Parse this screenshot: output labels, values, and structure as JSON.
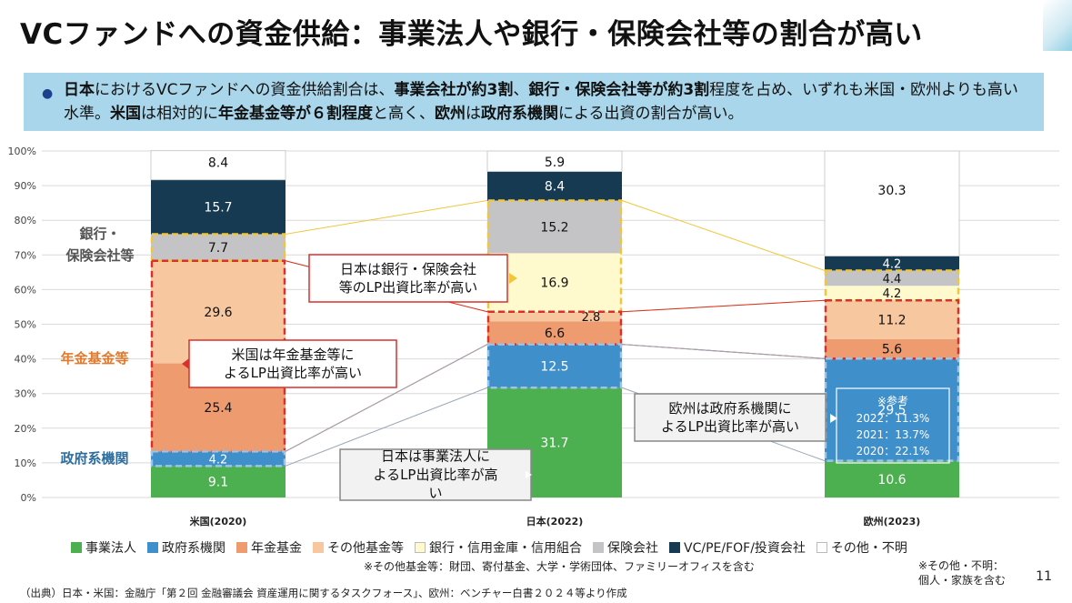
{
  "title": "VCファンドへの資金供給：事業法人や銀行・保険会社等の割合が高い",
  "summary": {
    "p1": "日本",
    "p2": "におけるVCファンドへの資金供給割合は、",
    "p3": "事業会社が約3割",
    "p4": "、",
    "p5": "銀行・保険会社等が約3割",
    "p6": "程度を占め、いずれも米国・欧州よりも高い水準。",
    "p7": "米国",
    "p8": "は相対的に",
    "p9": "年金基金等が６割程度",
    "p10": "と高く、",
    "p11": "欧州",
    "p12": "は",
    "p13": "政府系機関",
    "p14": "による出資の割合が高い。"
  },
  "colors": {
    "jigyou": "#4caf50",
    "seifu": "#3f8fca",
    "nenkin": "#ee9b6f",
    "sonota_kikin": "#f7c79f",
    "ginkou": "#fffacd",
    "hoken": "#c4c4c6",
    "vc": "#163a52",
    "sonota": "#ffffff",
    "bank_group": "#f0c63a",
    "pension_group": "#d9302b",
    "gov_group": "#9ec3e6"
  },
  "side_labels": {
    "bank": "銀行・\n保険会社等",
    "pension": "年金基金等",
    "gov": "政府系機関"
  },
  "callouts": {
    "us_pension": "米国は年金基金等に\nよるLP出資比率が高い",
    "jp_bank": "日本は銀行・保険会社\n等のLP出資比率が高い",
    "jp_corp": "日本は事業法人に\nよるLP出資比率が高\nい",
    "eu_gov": "欧州は政府系機関に\nよるLP出資比率が高い"
  },
  "reference_box": {
    "title": "※参考",
    "lines": [
      "2022：11.3%",
      "2021：13.7%",
      "2020：22.1%"
    ]
  },
  "legend": [
    {
      "label": "事業法人",
      "color": "#4caf50"
    },
    {
      "label": "政府系機関",
      "color": "#3f8fca"
    },
    {
      "label": "年金基金",
      "color": "#ee9b6f"
    },
    {
      "label": "その他基金等",
      "color": "#f7c79f"
    },
    {
      "label": "銀行・信用金庫・信用組合",
      "color": "#fffacd"
    },
    {
      "label": "保険会社",
      "color": "#c4c4c6"
    },
    {
      "label": "VC/PE/FOF/投資会社",
      "color": "#163a52"
    },
    {
      "label": "その他・不明",
      "color": "#ffffff"
    }
  ],
  "footnotes": {
    "sonota_kikin": "※その他基金等：財団、寄付基金、大学・学術団体、ファミリーオフィスを含む",
    "sonota": "※その他・不明：\n個人・家族を含む",
    "source": "（出典）日本・米国：金融庁「第２回 金融審議会 資産運用に関するタスクフォース」、欧州：ベンチャー白書２０２４等より作成",
    "page": "11"
  },
  "chart_data": {
    "type": "bar",
    "stacked": true,
    "categories": [
      "米国(2020)",
      "日本(2022)",
      "欧州(2023)"
    ],
    "y_ticks": [
      "0%",
      "10%",
      "20%",
      "30%",
      "40%",
      "50%",
      "60%",
      "70%",
      "80%",
      "90%",
      "100%"
    ],
    "ylim": [
      0,
      100
    ],
    "grid": true,
    "legend_position": "bottom",
    "series": [
      {
        "name": "事業法人",
        "values": [
          9.1,
          31.7,
          10.6
        ]
      },
      {
        "name": "政府系機関",
        "values": [
          4.2,
          12.5,
          29.5
        ]
      },
      {
        "name": "年金基金",
        "values": [
          25.4,
          6.6,
          5.6
        ]
      },
      {
        "name": "その他基金等",
        "values": [
          29.6,
          2.8,
          11.2
        ]
      },
      {
        "name": "銀行・信用金庫・信用組合",
        "values": [
          null,
          16.9,
          4.2
        ]
      },
      {
        "name": "保険会社",
        "values": [
          7.7,
          15.2,
          4.4
        ]
      },
      {
        "name": "VC/PE/FOF/投資会社",
        "values": [
          15.7,
          8.4,
          4.2
        ]
      },
      {
        "name": "その他・不明",
        "values": [
          8.4,
          5.9,
          30.3
        ]
      }
    ]
  }
}
